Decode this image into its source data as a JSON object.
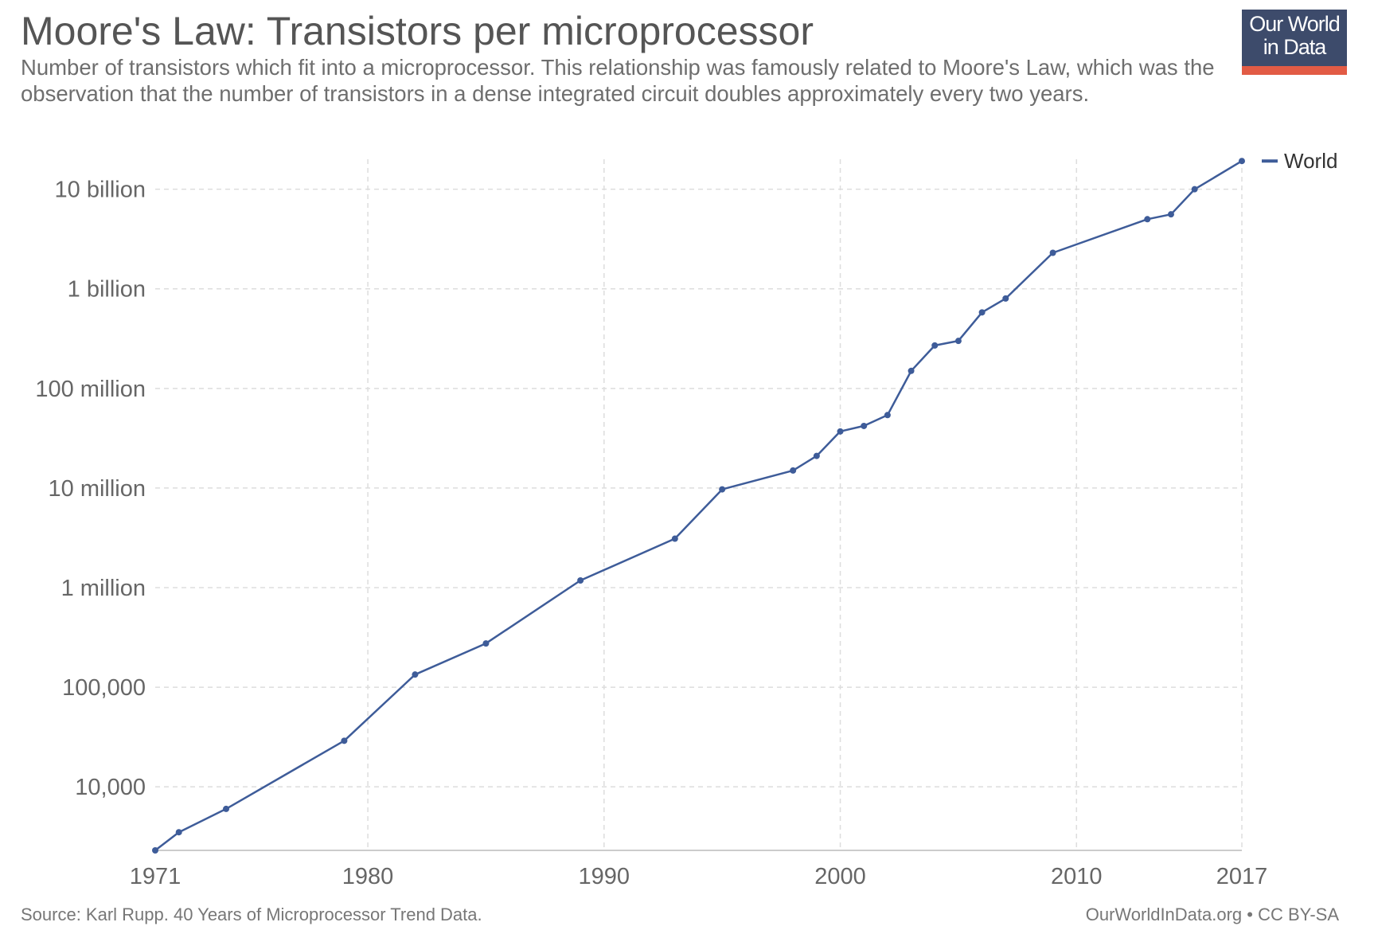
{
  "header": {
    "title": "Moore's Law: Transistors per microprocessor",
    "subtitle": "Number of transistors which fit into a microprocessor. This relationship was famously related to Moore's Law, which was the observation that the number of transistors in a dense integrated circuit doubles approximately every two years."
  },
  "logo": {
    "line1": "Our World",
    "line2": "in Data",
    "colors": {
      "box": "#3d4b6b",
      "bar": "#e25b45"
    }
  },
  "footer": {
    "source": "Source: Karl Rupp. 40 Years of Microprocessor Trend Data.",
    "credit": "OurWorldInData.org • CC BY-SA"
  },
  "chart_data": {
    "type": "line",
    "title": "Moore's Law: Transistors per microprocessor",
    "xlabel": "",
    "ylabel": "",
    "y_scale": "log",
    "xlim": [
      1971,
      2017
    ],
    "ylim": [
      2300,
      20000000000
    ],
    "grid": true,
    "legend_position": "right",
    "x_ticks": [
      {
        "value": 1971,
        "label": "1971"
      },
      {
        "value": 1980,
        "label": "1980"
      },
      {
        "value": 1990,
        "label": "1990"
      },
      {
        "value": 2000,
        "label": "2000"
      },
      {
        "value": 2010,
        "label": "2010"
      },
      {
        "value": 2017,
        "label": "2017"
      }
    ],
    "y_ticks": [
      {
        "value": 10000,
        "label": "10,000"
      },
      {
        "value": 100000,
        "label": "100,000"
      },
      {
        "value": 1000000,
        "label": "1 million"
      },
      {
        "value": 10000000,
        "label": "10 million"
      },
      {
        "value": 100000000,
        "label": "100 million"
      },
      {
        "value": 1000000000,
        "label": "1 billion"
      },
      {
        "value": 10000000000,
        "label": "10 billion"
      }
    ],
    "series": [
      {
        "name": "World",
        "color": "#3e5c99",
        "points": [
          {
            "x": 1971,
            "y": 2300
          },
          {
            "x": 1972,
            "y": 3500
          },
          {
            "x": 1974,
            "y": 6000
          },
          {
            "x": 1979,
            "y": 29000
          },
          {
            "x": 1982,
            "y": 134000
          },
          {
            "x": 1985,
            "y": 275000
          },
          {
            "x": 1989,
            "y": 1180000
          },
          {
            "x": 1993,
            "y": 3100000
          },
          {
            "x": 1995,
            "y": 9700000
          },
          {
            "x": 1998,
            "y": 15000000
          },
          {
            "x": 1999,
            "y": 21000000
          },
          {
            "x": 2000,
            "y": 37000000
          },
          {
            "x": 2001,
            "y": 42000000
          },
          {
            "x": 2002,
            "y": 54000000
          },
          {
            "x": 2003,
            "y": 150000000
          },
          {
            "x": 2004,
            "y": 270000000
          },
          {
            "x": 2005,
            "y": 300000000
          },
          {
            "x": 2006,
            "y": 580000000
          },
          {
            "x": 2007,
            "y": 800000000
          },
          {
            "x": 2009,
            "y": 2300000000
          },
          {
            "x": 2013,
            "y": 5000000000
          },
          {
            "x": 2014,
            "y": 5600000000
          },
          {
            "x": 2015,
            "y": 10000000000
          },
          {
            "x": 2017,
            "y": 19200000000
          }
        ]
      }
    ]
  }
}
